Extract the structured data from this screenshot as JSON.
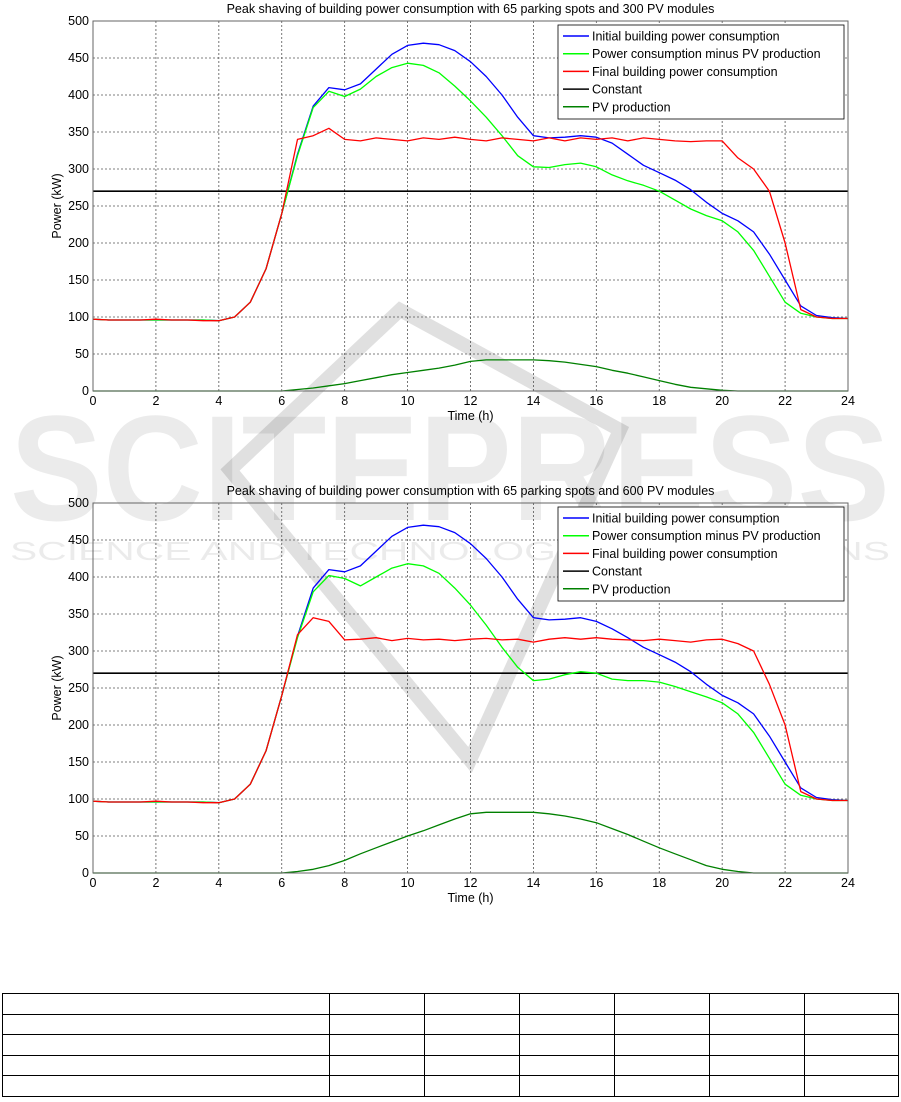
{
  "watermark": {
    "main": "SCITEPRESS",
    "sub": "SCIENCE AND TECHNOLOGY PUBLICATIONS"
  },
  "chart_data": [
    {
      "type": "line",
      "title": "Peak shaving of building power consumption with 65 parking spots and 300 PV modules",
      "xlabel": "Time (h)",
      "ylabel": "Power (kW)",
      "xlim": [
        0,
        24
      ],
      "ylim": [
        0,
        500
      ],
      "xticks": [
        "0",
        "2",
        "4",
        "6",
        "8",
        "10",
        "12",
        "14",
        "16",
        "18",
        "20",
        "22",
        "24"
      ],
      "yticks": [
        "0",
        "50",
        "100",
        "150",
        "200",
        "250",
        "300",
        "350",
        "400",
        "450",
        "500"
      ],
      "grid": true,
      "legend_position": "top-right",
      "x": [
        0,
        0.5,
        1,
        1.5,
        2,
        2.5,
        3,
        3.5,
        4,
        4.5,
        5,
        5.5,
        6,
        6.5,
        7,
        7.5,
        8,
        8.5,
        9,
        9.5,
        10,
        10.5,
        11,
        11.5,
        12,
        12.5,
        13,
        13.5,
        14,
        14.5,
        15,
        15.5,
        16,
        16.5,
        17,
        17.5,
        18,
        18.5,
        19,
        19.5,
        20,
        20.5,
        21,
        21.5,
        22,
        22.5,
        23,
        23.5,
        24
      ],
      "series": [
        {
          "name": "Initial building power consumption",
          "color": "#0000ff",
          "values": [
            97,
            96,
            96,
            96,
            96,
            96,
            96,
            96,
            95,
            100,
            120,
            165,
            240,
            320,
            385,
            410,
            407,
            415,
            435,
            455,
            467,
            470,
            468,
            460,
            445,
            425,
            400,
            370,
            345,
            342,
            343,
            345,
            343,
            335,
            320,
            305,
            295,
            285,
            272,
            255,
            240,
            230,
            215,
            185,
            150,
            115,
            102,
            99,
            98
          ]
        },
        {
          "name": "Power consumption minus PV production",
          "color": "#00ff00",
          "values": [
            97,
            96,
            96,
            96,
            96,
            96,
            96,
            96,
            95,
            100,
            120,
            165,
            240,
            318,
            383,
            405,
            398,
            408,
            425,
            437,
            443,
            440,
            430,
            412,
            392,
            370,
            345,
            318,
            303,
            302,
            306,
            308,
            303,
            292,
            284,
            278,
            270,
            258,
            246,
            237,
            230,
            215,
            190,
            155,
            120,
            105,
            100,
            98,
            98
          ]
        },
        {
          "name": "Final building power consumption",
          "color": "#ff0000",
          "values": [
            97,
            96,
            96,
            96,
            97,
            96,
            96,
            95,
            95,
            100,
            120,
            165,
            240,
            340,
            345,
            355,
            340,
            338,
            342,
            340,
            338,
            342,
            340,
            343,
            340,
            338,
            342,
            340,
            338,
            342,
            338,
            342,
            340,
            342,
            338,
            342,
            340,
            338,
            337,
            338,
            338,
            315,
            300,
            270,
            200,
            110,
            100,
            98,
            98
          ]
        },
        {
          "name": "Constant",
          "color": "#000000",
          "values": [
            270,
            270,
            270,
            270,
            270,
            270,
            270,
            270,
            270,
            270,
            270,
            270,
            270,
            270,
            270,
            270,
            270,
            270,
            270,
            270,
            270,
            270,
            270,
            270,
            270,
            270,
            270,
            270,
            270,
            270,
            270,
            270,
            270,
            270,
            270,
            270,
            270,
            270,
            270,
            270,
            270,
            270,
            270,
            270,
            270,
            270,
            270,
            270,
            270
          ]
        },
        {
          "name": "PV production",
          "color": "#008000",
          "values": [
            0,
            0,
            0,
            0,
            0,
            0,
            0,
            0,
            0,
            0,
            0,
            0,
            0,
            2,
            4,
            7,
            10,
            14,
            18,
            22,
            25,
            28,
            31,
            35,
            40,
            42,
            42,
            42,
            42,
            41,
            39,
            36,
            33,
            28,
            24,
            19,
            14,
            9,
            5,
            3,
            1,
            0,
            0,
            0,
            0,
            0,
            0,
            0,
            0
          ]
        }
      ]
    },
    {
      "type": "line",
      "title": "Peak shaving of building power consumption with 65 parking spots and 600 PV modules",
      "xlabel": "Time (h)",
      "ylabel": "Power (kW)",
      "xlim": [
        0,
        24
      ],
      "ylim": [
        0,
        500
      ],
      "xticks": [
        "0",
        "2",
        "4",
        "6",
        "8",
        "10",
        "12",
        "14",
        "16",
        "18",
        "20",
        "22",
        "24"
      ],
      "yticks": [
        "0",
        "50",
        "100",
        "150",
        "200",
        "250",
        "300",
        "350",
        "400",
        "450",
        "500"
      ],
      "grid": true,
      "legend_position": "top-right",
      "x": [
        0,
        0.5,
        1,
        1.5,
        2,
        2.5,
        3,
        3.5,
        4,
        4.5,
        5,
        5.5,
        6,
        6.5,
        7,
        7.5,
        8,
        8.5,
        9,
        9.5,
        10,
        10.5,
        11,
        11.5,
        12,
        12.5,
        13,
        13.5,
        14,
        14.5,
        15,
        15.5,
        16,
        16.5,
        17,
        17.5,
        18,
        18.5,
        19,
        19.5,
        20,
        20.5,
        21,
        21.5,
        22,
        22.5,
        23,
        23.5,
        24
      ],
      "series": [
        {
          "name": "Initial building power consumption",
          "color": "#0000ff",
          "values": [
            97,
            96,
            96,
            96,
            96,
            96,
            96,
            96,
            95,
            100,
            120,
            165,
            240,
            320,
            385,
            410,
            407,
            415,
            435,
            455,
            467,
            470,
            468,
            460,
            445,
            425,
            400,
            370,
            345,
            342,
            343,
            345,
            340,
            330,
            318,
            305,
            295,
            285,
            272,
            255,
            240,
            230,
            215,
            185,
            150,
            115,
            102,
            99,
            98
          ]
        },
        {
          "name": "Power consumption minus PV production",
          "color": "#00ff00",
          "values": [
            97,
            96,
            96,
            96,
            96,
            96,
            96,
            96,
            95,
            100,
            120,
            165,
            240,
            318,
            380,
            402,
            398,
            388,
            400,
            412,
            418,
            415,
            405,
            385,
            362,
            335,
            305,
            278,
            260,
            262,
            268,
            272,
            270,
            262,
            260,
            260,
            258,
            252,
            245,
            238,
            230,
            215,
            190,
            155,
            120,
            105,
            100,
            98,
            98
          ]
        },
        {
          "name": "Final building power consumption",
          "color": "#ff0000",
          "values": [
            97,
            96,
            96,
            96,
            97,
            96,
            96,
            95,
            95,
            100,
            120,
            165,
            240,
            322,
            345,
            340,
            315,
            316,
            318,
            314,
            317,
            315,
            316,
            314,
            316,
            317,
            315,
            316,
            312,
            316,
            318,
            316,
            318,
            316,
            315,
            314,
            316,
            314,
            312,
            315,
            316,
            310,
            300,
            255,
            200,
            110,
            100,
            98,
            98
          ]
        },
        {
          "name": "Constant",
          "color": "#000000",
          "values": [
            270,
            270,
            270,
            270,
            270,
            270,
            270,
            270,
            270,
            270,
            270,
            270,
            270,
            270,
            270,
            270,
            270,
            270,
            270,
            270,
            270,
            270,
            270,
            270,
            270,
            270,
            270,
            270,
            270,
            270,
            270,
            270,
            270,
            270,
            270,
            270,
            270,
            270,
            270,
            270,
            270,
            270,
            270,
            270,
            270,
            270,
            270,
            270,
            270
          ]
        },
        {
          "name": "PV production",
          "color": "#008000",
          "values": [
            0,
            0,
            0,
            0,
            0,
            0,
            0,
            0,
            0,
            0,
            0,
            0,
            0,
            2,
            5,
            10,
            17,
            26,
            34,
            42,
            50,
            57,
            65,
            73,
            80,
            82,
            82,
            82,
            82,
            80,
            77,
            73,
            68,
            60,
            52,
            43,
            34,
            26,
            18,
            10,
            5,
            2,
            0,
            0,
            0,
            0,
            0,
            0,
            0
          ]
        }
      ]
    }
  ],
  "table": {
    "rows": 5,
    "cols": 7
  }
}
